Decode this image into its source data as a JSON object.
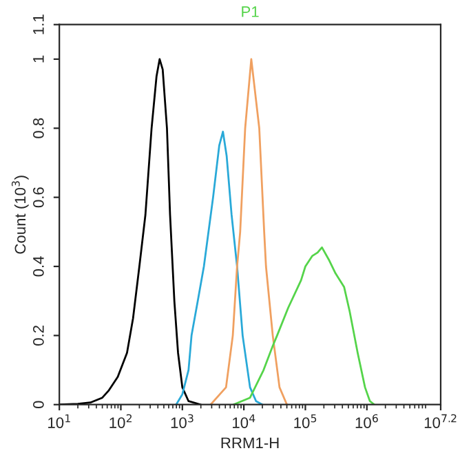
{
  "chart_data": {
    "type": "line",
    "title": "P1",
    "xlabel": "RRM1-H",
    "ylabel": "Count (10$^{3}$)",
    "log": "x",
    "grid": false,
    "legend": false,
    "marker": "none",
    "line_style": "solid",
    "xlim": [
      10,
      15848932
    ],
    "ylim": [
      0,
      1.1
    ],
    "xticks": [
      {
        "value": 10,
        "label": "10$^{1}$"
      },
      {
        "value": 100,
        "label": "10$^{2}$"
      },
      {
        "value": 1000,
        "label": "10$^{3}$"
      },
      {
        "value": 10000,
        "label": "10$^{4}$"
      },
      {
        "value": 100000,
        "label": "10$^{5}$"
      },
      {
        "value": 1000000,
        "label": "10$^{6}$"
      },
      {
        "value": 15848932,
        "label": "10$^{7.2}$"
      }
    ],
    "yticks": [
      0,
      0.2,
      0.4,
      0.6,
      0.8,
      1,
      1.1
    ],
    "series": [
      {
        "color": "#000000",
        "x": [
          10,
          20,
          32,
          50,
          63,
          89,
          126,
          158,
          200,
          251,
          316,
          380,
          427,
          479,
          562,
          631,
          741,
          851,
          1000,
          1260,
          2000
        ],
        "values": [
          0,
          0.002,
          0.006,
          0.02,
          0.04,
          0.08,
          0.15,
          0.25,
          0.4,
          0.55,
          0.8,
          0.95,
          1.0,
          0.97,
          0.8,
          0.55,
          0.3,
          0.15,
          0.05,
          0.01,
          0
        ]
      },
      {
        "color": "#29a9d8",
        "x": [
          794,
          1000,
          1260,
          1410,
          1780,
          2240,
          3160,
          3980,
          4570,
          5250,
          6310,
          7760,
          9550,
          12600,
          15800,
          20000
        ],
        "values": [
          0,
          0.03,
          0.1,
          0.2,
          0.3,
          0.4,
          0.6,
          0.75,
          0.79,
          0.72,
          0.55,
          0.4,
          0.2,
          0.05,
          0.01,
          0
        ]
      },
      {
        "color": "#f0a060",
        "x": [
          2880,
          5130,
          6610,
          7760,
          8710,
          10500,
          13200,
          17800,
          21400,
          22900,
          29500,
          38000,
          50100
        ],
        "values": [
          0,
          0.05,
          0.2,
          0.4,
          0.5,
          0.8,
          1.0,
          0.8,
          0.5,
          0.4,
          0.2,
          0.05,
          0
        ]
      },
      {
        "color": "#55d44a",
        "x": [
          6760,
          12600,
          20900,
          29500,
          34700,
          52500,
          85100,
          100000,
          129000,
          158000,
          186000,
          240000,
          309000,
          427000,
          525000,
          708000,
          933000,
          1120000,
          1320000
        ],
        "values": [
          0,
          0.02,
          0.1,
          0.17,
          0.2,
          0.28,
          0.36,
          0.4,
          0.43,
          0.44,
          0.455,
          0.42,
          0.38,
          0.34,
          0.27,
          0.15,
          0.05,
          0.01,
          0
        ]
      }
    ]
  }
}
